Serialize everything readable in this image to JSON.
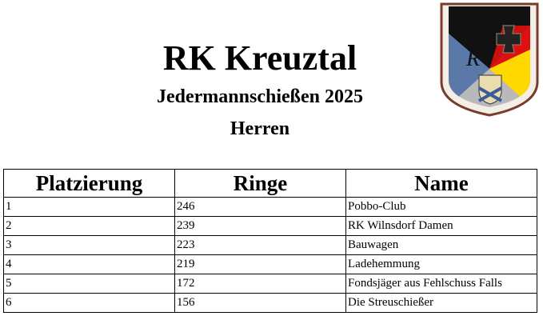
{
  "header": {
    "title": "RK Kreuztal",
    "subtitle": "Jedermannschießen 2025",
    "category": "Herren",
    "logo": "club-crest"
  },
  "table": {
    "columns": [
      "Platzierung",
      "Ringe",
      "Name"
    ],
    "rows": [
      {
        "place": "1",
        "rings": "246",
        "name": "Pobbo-Club"
      },
      {
        "place": "2",
        "rings": "239",
        "name": "RK Wilnsdorf Damen"
      },
      {
        "place": "3",
        "rings": "223",
        "name": "Bauwagen"
      },
      {
        "place": "4",
        "rings": "219",
        "name": "Ladehemmung"
      },
      {
        "place": "5",
        "rings": "172",
        "name": "Fondsjäger aus Fehlschuss Falls"
      },
      {
        "place": "6",
        "rings": "156",
        "name": "Die Streuschießer"
      }
    ]
  }
}
